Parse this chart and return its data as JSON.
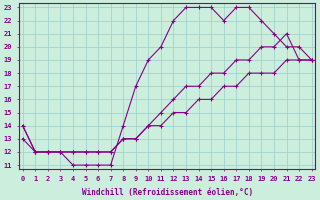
{
  "xlabel": "Windchill (Refroidissement éolien,°C)",
  "background_color": "#cceedd",
  "line_color": "#880088",
  "grid_color": "#99cccc",
  "xmin": 0,
  "xmax": 23,
  "ymin": 11,
  "ymax": 23,
  "line1_x": [
    0,
    1,
    2,
    3,
    4,
    5,
    6,
    7,
    8,
    9,
    10,
    11,
    12,
    13,
    14,
    15,
    16,
    17,
    18,
    19,
    20,
    21,
    22,
    23
  ],
  "line1_y": [
    14,
    12,
    12,
    12,
    11,
    11,
    11,
    11,
    14,
    17,
    19,
    20,
    22,
    23,
    23,
    23,
    22,
    23,
    23,
    22,
    21,
    20,
    20,
    19
  ],
  "line2_x": [
    0,
    1,
    2,
    3,
    4,
    5,
    6,
    7,
    8,
    9,
    10,
    11,
    12,
    13,
    14,
    15,
    16,
    17,
    18,
    19,
    20,
    21,
    22,
    23
  ],
  "line2_y": [
    13,
    12,
    12,
    12,
    12,
    12,
    12,
    12,
    13,
    13,
    14,
    15,
    16,
    17,
    17,
    18,
    18,
    19,
    19,
    20,
    20,
    21,
    19,
    19
  ],
  "line3_x": [
    0,
    1,
    2,
    3,
    4,
    5,
    6,
    7,
    8,
    9,
    10,
    11,
    12,
    13,
    14,
    15,
    16,
    17,
    18,
    19,
    20,
    21,
    22,
    23
  ],
  "line3_y": [
    14,
    12,
    12,
    12,
    12,
    12,
    12,
    12,
    13,
    13,
    14,
    14,
    15,
    15,
    16,
    16,
    17,
    17,
    18,
    18,
    18,
    19,
    19,
    19
  ],
  "xtick_labels": [
    "0",
    "1",
    "2",
    "3",
    "4",
    "5",
    "6",
    "7",
    "8",
    "9",
    "10",
    "11",
    "12",
    "13",
    "14",
    "15",
    "16",
    "17",
    "18",
    "19",
    "20",
    "21",
    "22",
    "23"
  ],
  "ytick_labels": [
    "11",
    "12",
    "13",
    "14",
    "15",
    "16",
    "17",
    "18",
    "19",
    "20",
    "21",
    "22",
    "23"
  ],
  "fontsize_xlabel": 5.5,
  "fontsize_ticks": 5.0,
  "markersize": 2.5,
  "linewidth": 0.8
}
